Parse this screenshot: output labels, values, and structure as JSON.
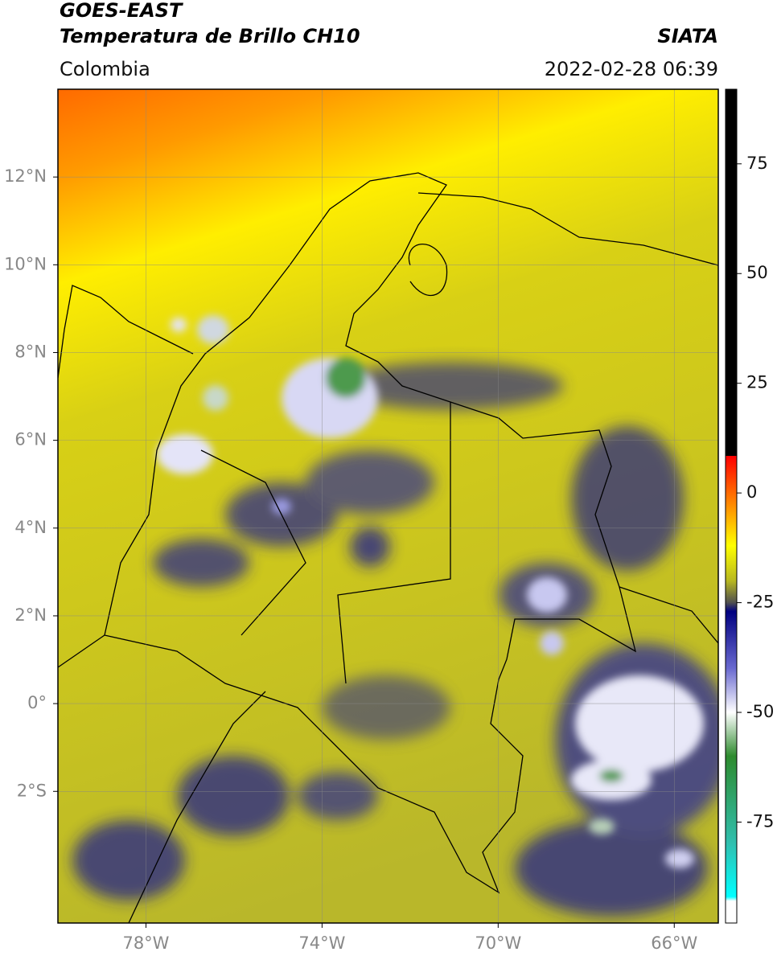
{
  "header": {
    "title": "GOES-EAST",
    "subtitle": "Temperatura de Brillo CH10",
    "source": "SIATA",
    "region": "Colombia",
    "datetime": "2022-02-28 06:39"
  },
  "map": {
    "lon_lim": [
      -80,
      -65
    ],
    "lat_lim": [
      -5,
      14
    ],
    "grid": true,
    "xticks": [
      {
        "value": -78,
        "label": "78°W"
      },
      {
        "value": -74,
        "label": "74°W"
      },
      {
        "value": -70,
        "label": "70°W"
      },
      {
        "value": -66,
        "label": "66°W"
      }
    ],
    "yticks": [
      {
        "value": 12,
        "label": "12°N"
      },
      {
        "value": 10,
        "label": "10°N"
      },
      {
        "value": 8,
        "label": "8°N"
      },
      {
        "value": 6,
        "label": "6°N"
      },
      {
        "value": 4,
        "label": "4°N"
      },
      {
        "value": 2,
        "label": "2°N"
      },
      {
        "value": 0,
        "label": "0°"
      },
      {
        "value": -2,
        "label": "2°S"
      }
    ]
  },
  "colorbar": {
    "lim": [
      -98,
      92
    ],
    "ticks": [
      75,
      50,
      25,
      0,
      -25,
      -50,
      -75
    ],
    "colormap": [
      {
        "value": 92,
        "color": "#000000"
      },
      {
        "value": 8.5,
        "color": "#000000"
      },
      {
        "value": 8.4,
        "color": "#ff0000"
      },
      {
        "value": 0,
        "color": "#ff6a00"
      },
      {
        "value": -12,
        "color": "#ffff00"
      },
      {
        "value": -20,
        "color": "#b8b820"
      },
      {
        "value": -25,
        "color": "#505050"
      },
      {
        "value": -27,
        "color": "#000080"
      },
      {
        "value": -40,
        "color": "#6a6ad0"
      },
      {
        "value": -50,
        "color": "#ffffff"
      },
      {
        "value": -60,
        "color": "#2e8b2e"
      },
      {
        "value": -80,
        "color": "#30c0b0"
      },
      {
        "value": -92,
        "color": "#00ffff"
      },
      {
        "value": -93,
        "color": "#ffffff"
      },
      {
        "value": -98,
        "color": "#ffffff"
      }
    ]
  }
}
